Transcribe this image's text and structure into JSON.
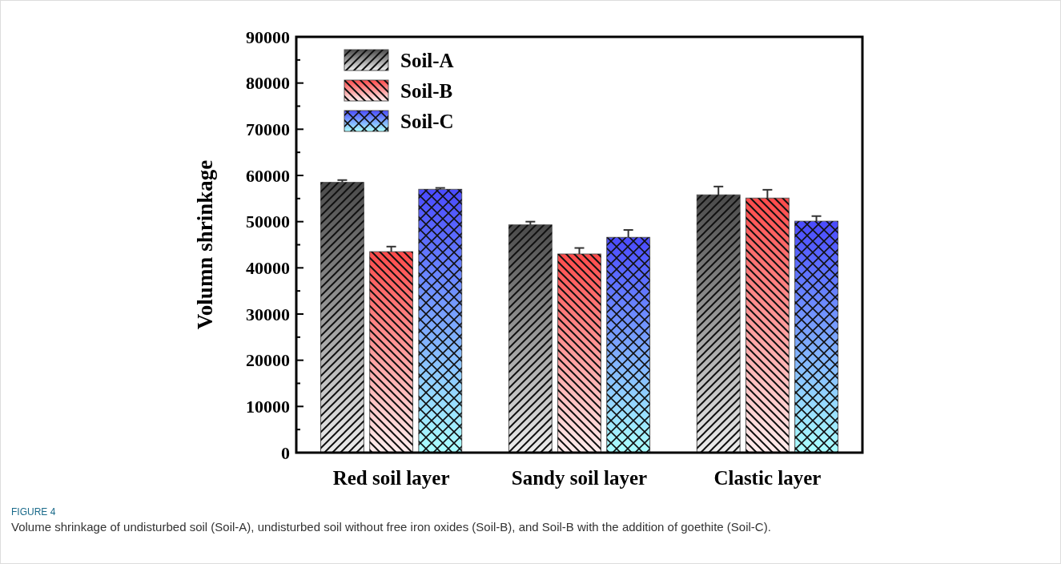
{
  "chart_data": {
    "type": "bar",
    "ylabel": "Volumn shrinkage",
    "categories": [
      "Red soil layer",
      "Sandy soil layer",
      "Clastic layer"
    ],
    "series": [
      {
        "name": "Soil-A",
        "color": "#4a4a4a",
        "values": [
          58500,
          49300,
          55800
        ],
        "errors": [
          [
            58500,
            59000
          ],
          [
            49300,
            50000
          ],
          [
            55800,
            57600
          ]
        ]
      },
      {
        "name": "Soil-B",
        "color": "#ff4a4a",
        "values": [
          43500,
          43000,
          55100
        ],
        "errors": [
          [
            43500,
            44600
          ],
          [
            43000,
            44300
          ],
          [
            55100,
            56900
          ]
        ]
      },
      {
        "name": "Soil-C",
        "color": "#4a4aff",
        "values": [
          57000,
          46600,
          50100
        ],
        "errors": [
          [
            57000,
            57300
          ],
          [
            46600,
            48200
          ],
          [
            50100,
            51200
          ]
        ]
      }
    ],
    "ylim": [
      0,
      90000
    ],
    "yticks": [
      0,
      10000,
      20000,
      30000,
      40000,
      50000,
      60000,
      70000,
      80000,
      90000
    ],
    "legend": "top left",
    "annotations": [
      "FIGURE 4",
      "Volume shrinkage of undisturbed soil (Soil-A), undisturbed soil without free iron oxides (Soil-B), and Soil-B with the addition of goethite (Soil-C)."
    ]
  }
}
